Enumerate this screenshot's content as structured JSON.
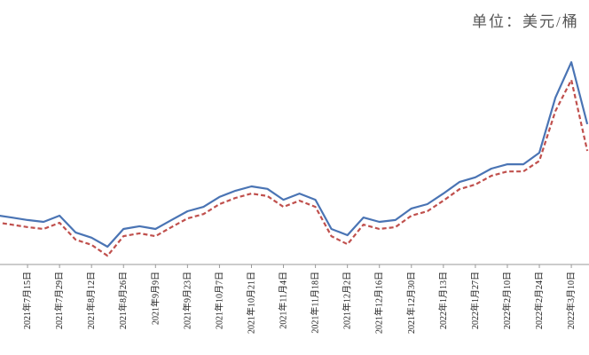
{
  "chart_data": {
    "type": "line",
    "unit_label": "单位：美元/桶",
    "categories": [
      null,
      null,
      "2021年7月15日",
      null,
      "2021年7月29日",
      null,
      "2021年8月12日",
      null,
      "2021年8月26日",
      null,
      "2021年9月9日",
      null,
      "2021年9月23日",
      null,
      "2021年10月7日",
      null,
      "2021年10月21日",
      null,
      "2021年11月4日",
      null,
      "2021年11月18日",
      null,
      "2021年12月2日",
      null,
      "2021年12月16日",
      null,
      "2021年12月30日",
      null,
      "2022年1月13日",
      null,
      "2022年1月27日",
      null,
      "2022年2月10日",
      null,
      "2022年2月24日",
      null,
      "2022年3月10日",
      null
    ],
    "series": [
      {
        "color": "#4a74b4",
        "dash": false,
        "values": [
          75.9,
          75.1,
          74.3,
          73.7,
          75.7,
          70.3,
          68.6,
          65.7,
          71.4,
          72.3,
          71.4,
          74.3,
          77.1,
          78.5,
          81.7,
          83.7,
          85.1,
          84.3,
          80.8,
          82.8,
          80.8,
          71.4,
          69.4,
          75.1,
          73.7,
          74.3,
          78.0,
          79.4,
          82.8,
          86.5,
          88.0,
          90.8,
          92.2,
          92.2,
          95.9,
          113.6,
          125.0,
          105.1
        ]
      },
      {
        "color": "#c0504d",
        "dash": true,
        "values": [
          73.6,
          72.8,
          72.0,
          71.4,
          73.4,
          68.0,
          66.3,
          62.8,
          69.1,
          70.0,
          69.1,
          72.0,
          74.8,
          76.2,
          79.4,
          81.4,
          82.8,
          82.0,
          78.5,
          80.5,
          78.5,
          69.1,
          66.5,
          72.8,
          71.4,
          72.0,
          75.7,
          77.1,
          80.5,
          84.2,
          85.7,
          88.5,
          89.9,
          89.9,
          93.3,
          109.3,
          119.3,
          96.5
        ]
      }
    ],
    "ylim": [
      60,
      145
    ]
  }
}
